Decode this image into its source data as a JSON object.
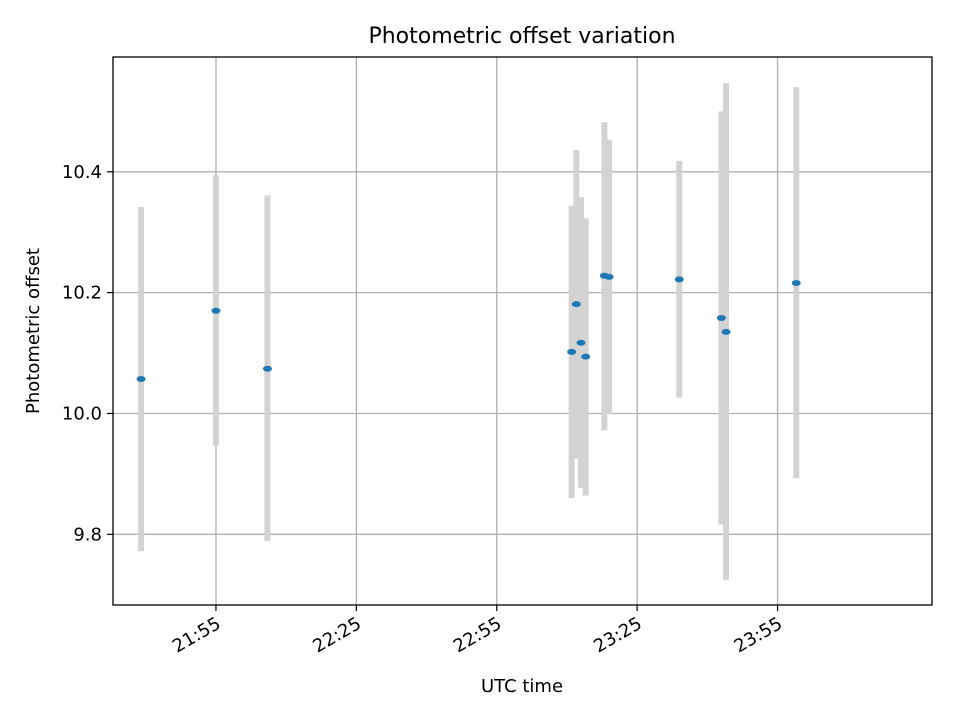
{
  "chart_data": {
    "type": "scatter",
    "title": "Photometric offset variation",
    "xlabel": "UTC time",
    "ylabel": "Photometric offset",
    "x_axis": "time",
    "xlim": [
      "21:33",
      "24:28"
    ],
    "ylim": [
      9.683,
      10.59
    ],
    "xticks": [
      "21:55",
      "22:25",
      "22:55",
      "23:25",
      "23:55"
    ],
    "yticks": [
      9.8,
      10.0,
      10.2,
      10.4
    ],
    "ytick_labels": [
      "9.8",
      "10.0",
      "10.2",
      "10.4"
    ],
    "grid": true,
    "series": [
      {
        "points": [
          {
            "x": "21:39",
            "y": 10.057,
            "lo": 9.772,
            "hi": 10.342
          },
          {
            "x": "21:55",
            "y": 10.17,
            "lo": 9.947,
            "hi": 10.394
          },
          {
            "x": "22:06",
            "y": 10.074,
            "lo": 9.789,
            "hi": 10.361
          },
          {
            "x": "23:11",
            "y": 10.102,
            "lo": 9.86,
            "hi": 10.344
          },
          {
            "x": "23:12",
            "y": 10.181,
            "lo": 9.925,
            "hi": 10.436
          },
          {
            "x": "23:13",
            "y": 10.117,
            "lo": 9.877,
            "hi": 10.358
          },
          {
            "x": "23:14",
            "y": 10.094,
            "lo": 9.864,
            "hi": 10.323
          },
          {
            "x": "23:18",
            "y": 10.228,
            "lo": 9.972,
            "hi": 10.482
          },
          {
            "x": "23:19",
            "y": 10.226,
            "lo": 9.999,
            "hi": 10.453
          },
          {
            "x": "23:34",
            "y": 10.222,
            "lo": 10.026,
            "hi": 10.418
          },
          {
            "x": "23:43",
            "y": 10.158,
            "lo": 9.816,
            "hi": 10.5
          },
          {
            "x": "23:44",
            "y": 10.135,
            "lo": 9.724,
            "hi": 10.547
          },
          {
            "x": "23:59",
            "y": 10.216,
            "lo": 9.893,
            "hi": 10.54
          }
        ]
      }
    ],
    "colors": {
      "marker": "#1f77b4",
      "errorbar": "#d3d3d3",
      "grid": "#b0b0b0",
      "axes": "#000000"
    }
  }
}
